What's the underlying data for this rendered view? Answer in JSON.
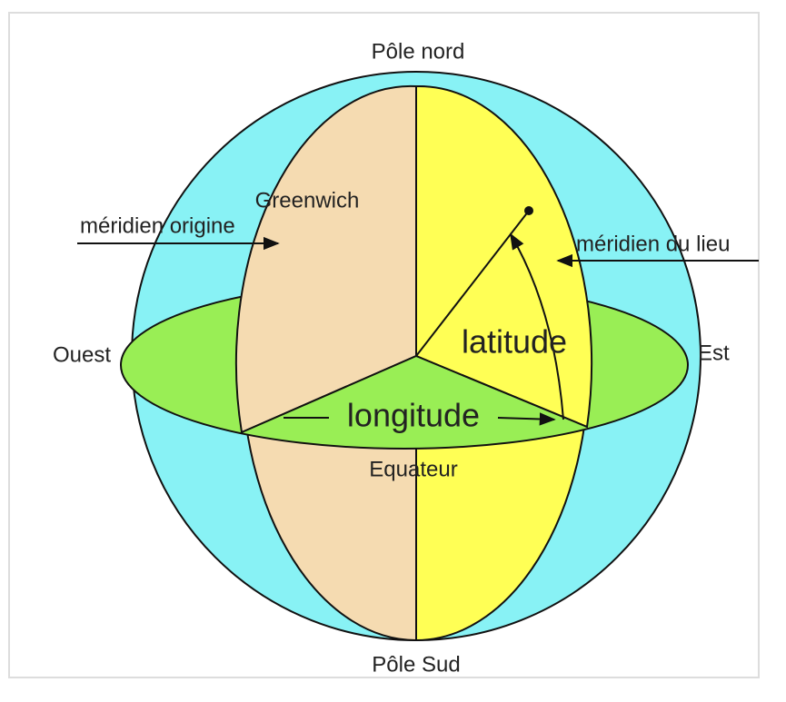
{
  "labels": {
    "north_pole": "Pôle nord",
    "greenwich": "Greenwich",
    "prime_meridian": "méridien origine",
    "local_meridian": "méridien du lieu",
    "west": "Ouest",
    "east": "Est",
    "latitude": "latitude",
    "longitude": "longitude",
    "equator": "Equateur",
    "south_pole": "Pôle Sud"
  }
}
